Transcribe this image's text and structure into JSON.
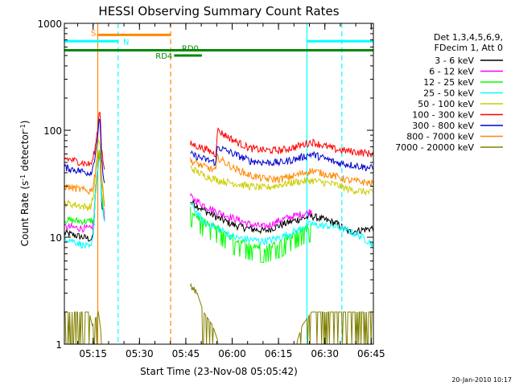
{
  "chart_data": {
    "type": "line",
    "title": "HESSI Observing Summary Count Rates",
    "xlabel": "Start Time (23-Nov-08 05:05:42)",
    "ylabel_main": "Count Rate (s",
    "ylabel_exp1": "-1",
    "ylabel_mid": " detector",
    "ylabel_exp2": "-1",
    "ylabel_end": ")",
    "yscale": "log",
    "ylim": [
      1,
      1000
    ],
    "xlim_minutes": [
      0,
      100
    ],
    "y_ticks": [
      {
        "value": 1,
        "label": "1"
      },
      {
        "value": 10,
        "label": "10"
      },
      {
        "value": 100,
        "label": "100"
      },
      {
        "value": 1000,
        "label": "1000"
      }
    ],
    "x_ticks": [
      {
        "minute": 9.3,
        "label": "05:15"
      },
      {
        "minute": 24.3,
        "label": "05:30"
      },
      {
        "minute": 39.3,
        "label": "05:45"
      },
      {
        "minute": 54.3,
        "label": "06:00"
      },
      {
        "minute": 69.3,
        "label": "06:15"
      },
      {
        "minute": 84.3,
        "label": "06:30"
      },
      {
        "minute": 99.3,
        "label": "06:45"
      }
    ],
    "legend_header": [
      "Det 1,3,4,5,6,9,",
      "FDecim 1, Att 0"
    ],
    "series": [
      {
        "name": "3 - 6 keV",
        "color": "#000000",
        "points": [
          [
            0,
            11.0
          ],
          [
            8,
            9.7
          ],
          [
            9,
            9.5
          ],
          [
            9.5,
            12
          ],
          [
            10,
            25
          ],
          [
            11,
            50
          ],
          [
            11.4,
            60
          ],
          [
            11.9,
            35
          ],
          [
            12,
            22
          ],
          [
            13,
            14
          ],
          [
            13.5,
            0
          ],
          [
            40.2,
            0
          ],
          [
            40.6,
            22
          ],
          [
            45,
            18
          ],
          [
            50,
            15
          ],
          [
            55,
            13
          ],
          [
            60,
            12
          ],
          [
            65,
            11.5
          ],
          [
            70,
            13
          ],
          [
            75,
            14.5
          ],
          [
            79,
            15.5
          ],
          [
            80,
            15.8
          ],
          [
            88,
            13.5
          ],
          [
            92,
            11.2
          ],
          [
            100,
            12.2
          ]
        ]
      },
      {
        "name": "6 - 12 keV",
        "color": "#ff00ff",
        "points": [
          [
            0,
            12.5
          ],
          [
            8,
            12.0
          ],
          [
            8.7,
            12.0
          ],
          [
            9.5,
            14
          ],
          [
            10,
            25
          ],
          [
            11,
            50
          ],
          [
            11.4,
            70
          ],
          [
            11.9,
            40
          ],
          [
            12,
            26
          ],
          [
            13,
            15
          ],
          [
            13.5,
            0
          ],
          [
            40.2,
            0
          ],
          [
            40.6,
            24
          ],
          [
            45,
            20
          ],
          [
            50,
            17
          ],
          [
            55,
            15
          ],
          [
            60,
            13.2
          ],
          [
            65,
            12.5
          ],
          [
            70,
            14.5
          ],
          [
            75,
            16
          ],
          [
            79,
            17
          ],
          [
            80,
            18
          ]
        ]
      },
      {
        "name": "12 - 25 keV",
        "color": "#00ff00",
        "points": [
          [
            0,
            14.5
          ],
          [
            8,
            14.0
          ],
          [
            8.7,
            14.5
          ],
          [
            9.5,
            14
          ],
          [
            10,
            25
          ],
          [
            11,
            50
          ],
          [
            11.4,
            70
          ],
          [
            11.9,
            40
          ],
          [
            12,
            26
          ],
          [
            13,
            15
          ],
          [
            13.5,
            0
          ],
          [
            40.2,
            0
          ],
          [
            40.6,
            18
          ],
          [
            45,
            14
          ],
          [
            50,
            12
          ],
          [
            55,
            9.5
          ],
          [
            60,
            8.5
          ],
          [
            65,
            8
          ],
          [
            70,
            9
          ],
          [
            75,
            11
          ],
          [
            79,
            12.5
          ],
          [
            80,
            12.5
          ]
        ]
      },
      {
        "name": "25 - 50 keV",
        "color": "#00ffff",
        "points": [
          [
            0,
            10
          ],
          [
            8,
            8
          ],
          [
            8.7,
            8
          ],
          [
            9.5,
            12
          ],
          [
            10,
            25
          ],
          [
            11,
            50
          ],
          [
            11.4,
            60
          ],
          [
            11.9,
            35
          ],
          [
            12,
            22
          ],
          [
            13,
            14
          ],
          [
            13.5,
            0
          ],
          [
            40.2,
            0
          ],
          [
            40.6,
            21
          ],
          [
            45,
            14
          ],
          [
            50,
            12
          ],
          [
            55,
            10
          ],
          [
            60,
            9.5
          ],
          [
            65,
            9.2
          ],
          [
            70,
            10
          ],
          [
            75,
            11.5
          ],
          [
            79,
            13
          ],
          [
            80,
            13.5
          ],
          [
            80.3,
            13.5
          ],
          [
            80.6,
            13
          ],
          [
            88,
            12.6
          ],
          [
            93,
            11.2
          ],
          [
            97,
            9.8
          ],
          [
            100,
            8.5
          ]
        ]
      },
      {
        "name": "50 - 100 keV",
        "color": "#cccc00",
        "points": [
          [
            0,
            21
          ],
          [
            8,
            19
          ],
          [
            8.7,
            20
          ],
          [
            9.5,
            25
          ],
          [
            10,
            40
          ],
          [
            11,
            80
          ],
          [
            11.9,
            60
          ],
          [
            12,
            40
          ],
          [
            13,
            20
          ],
          [
            13.5,
            0
          ],
          [
            40.2,
            0
          ],
          [
            40.6,
            45
          ],
          [
            45,
            38
          ],
          [
            50,
            34
          ],
          [
            55,
            32
          ],
          [
            60,
            30
          ],
          [
            65,
            29
          ],
          [
            70,
            31
          ],
          [
            75,
            33
          ],
          [
            80,
            34
          ],
          [
            88,
            31
          ],
          [
            92,
            28
          ],
          [
            100,
            26
          ]
        ]
      },
      {
        "name": "100 - 300 keV",
        "color": "#ff0000",
        "points": [
          [
            0,
            55
          ],
          [
            8,
            48
          ],
          [
            9,
            50
          ],
          [
            10,
            70
          ],
          [
            11,
            120
          ],
          [
            11.4,
            170
          ],
          [
            11.9,
            100
          ],
          [
            12,
            70
          ],
          [
            13,
            40
          ],
          [
            13.5,
            0
          ],
          [
            40.2,
            0
          ],
          [
            40.6,
            75
          ],
          [
            45,
            68
          ],
          [
            49,
            60
          ],
          [
            49.5,
            100
          ],
          [
            55,
            80
          ],
          [
            60,
            68
          ],
          [
            65,
            65
          ],
          [
            70,
            65
          ],
          [
            75,
            70
          ],
          [
            80,
            78
          ],
          [
            88,
            66
          ],
          [
            92,
            64
          ],
          [
            100,
            60
          ]
        ]
      },
      {
        "name": "300 - 800 keV",
        "color": "#0000cc",
        "points": [
          [
            0,
            45
          ],
          [
            8,
            40
          ],
          [
            9,
            42
          ],
          [
            10,
            60
          ],
          [
            11,
            100
          ],
          [
            11.4,
            130
          ],
          [
            11.9,
            80
          ],
          [
            12,
            55
          ],
          [
            13,
            30
          ],
          [
            13.5,
            0
          ],
          [
            40.2,
            0
          ],
          [
            40.6,
            60
          ],
          [
            45,
            54
          ],
          [
            49,
            50
          ],
          [
            49.5,
            70
          ],
          [
            55,
            60
          ],
          [
            60,
            52
          ],
          [
            65,
            50
          ],
          [
            70,
            50
          ],
          [
            75,
            54
          ],
          [
            80,
            60
          ],
          [
            88,
            50
          ],
          [
            92,
            48
          ],
          [
            100,
            44
          ]
        ]
      },
      {
        "name": "800 - 7000 keV",
        "color": "#ff8800",
        "points": [
          [
            0,
            30
          ],
          [
            8,
            27
          ],
          [
            9,
            28
          ],
          [
            10,
            40
          ],
          [
            11,
            60
          ],
          [
            11.9,
            50
          ],
          [
            12,
            35
          ],
          [
            13,
            20
          ],
          [
            13.5,
            0
          ],
          [
            40.2,
            0
          ],
          [
            40.6,
            52
          ],
          [
            45,
            46
          ],
          [
            49,
            42
          ],
          [
            49.5,
            56
          ],
          [
            55,
            44
          ],
          [
            60,
            38
          ],
          [
            65,
            35
          ],
          [
            70,
            35
          ],
          [
            75,
            38
          ],
          [
            80,
            42
          ],
          [
            88,
            37
          ],
          [
            92,
            34
          ],
          [
            100,
            32
          ]
        ]
      },
      {
        "name": "7000 - 20000 keV",
        "color": "#808000",
        "points": [
          [
            0,
            2
          ],
          [
            8,
            2
          ],
          [
            9,
            1.5
          ],
          [
            11,
            2
          ],
          [
            12,
            1.2
          ],
          [
            12.5,
            0
          ],
          [
            40.2,
            0
          ],
          [
            40.6,
            3.5
          ],
          [
            43,
            3
          ],
          [
            45,
            2
          ],
          [
            48,
            1.5
          ],
          [
            50,
            1
          ],
          [
            75,
            1
          ],
          [
            77,
            1.5
          ],
          [
            80,
            2
          ],
          [
            88,
            2
          ],
          [
            92,
            2
          ],
          [
            100,
            2
          ]
        ]
      }
    ],
    "vlines": [
      {
        "minute": 10.8,
        "color": "#ff8800",
        "style": "solid"
      },
      {
        "minute": 17.4,
        "color": "#00ffff",
        "style": "dashed"
      },
      {
        "minute": 34.4,
        "color": "#ff8800",
        "style": "dashed"
      },
      {
        "minute": 78.5,
        "color": "#00ffff",
        "style": "solid"
      },
      {
        "minute": 89.8,
        "color": "#00ffff",
        "style": "dashed"
      }
    ],
    "flags": [
      {
        "label": "S",
        "color": "#ff8800",
        "x_start": 10.8,
        "x_end": 34.4,
        "y_value": 780,
        "label_minute": 8.6,
        "label_y_value": 820
      },
      {
        "label": "N",
        "color": "#00ffff",
        "x_start": 0,
        "x_end": 17.4,
        "y_value": 680,
        "label_minute": 19.0,
        "label_y_value": 680
      },
      {
        "label": "",
        "color": "#00ffff",
        "x_start": 78.5,
        "x_end": 100,
        "y_value": 680,
        "label_minute": 0,
        "label_y_value": 0
      },
      {
        "label": "RD0",
        "color": "#008800",
        "x_start": 0,
        "x_end": 100,
        "y_value": 560,
        "label_minute": 38.0,
        "label_y_value": 590
      },
      {
        "label": "RD4",
        "color": "#008800",
        "x_start": 35.5,
        "x_end": 44.5,
        "y_value": 500,
        "label_minute": 29.5,
        "label_y_value": 500
      }
    ]
  },
  "footer": {
    "stamp": "20-Jan-2010 10:17"
  }
}
